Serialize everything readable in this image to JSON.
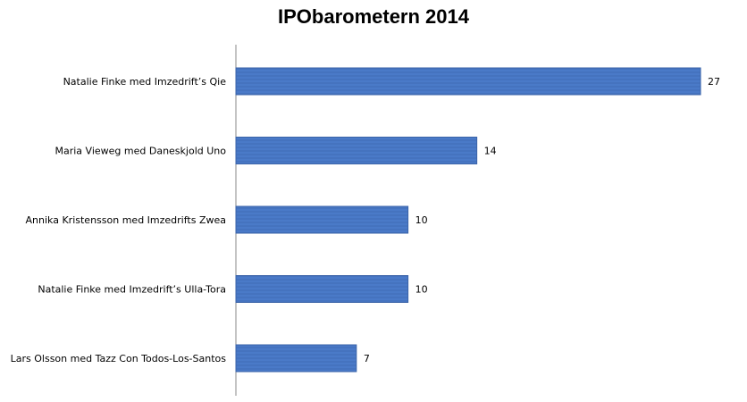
{
  "chart_data": {
    "type": "bar",
    "orientation": "horizontal",
    "title": "IPObarometern 2014",
    "categories": [
      "Natalie Finke med Imzedrift’s Qie",
      "Maria Vieweg med Daneskjold Uno",
      "Annika Kristensson med Imzedrifts Zwea",
      "Natalie Finke med Imzedrift’s Ulla-Tora",
      "Lars Olsson med Tazz Con Todos-Los-Santos"
    ],
    "values": [
      27,
      14,
      10,
      10,
      7
    ],
    "xlim": [
      0,
      27
    ],
    "grid": false,
    "legend": "none",
    "bar_color": "#4a7ac8",
    "bar_edge_color": "#3a63a8"
  }
}
